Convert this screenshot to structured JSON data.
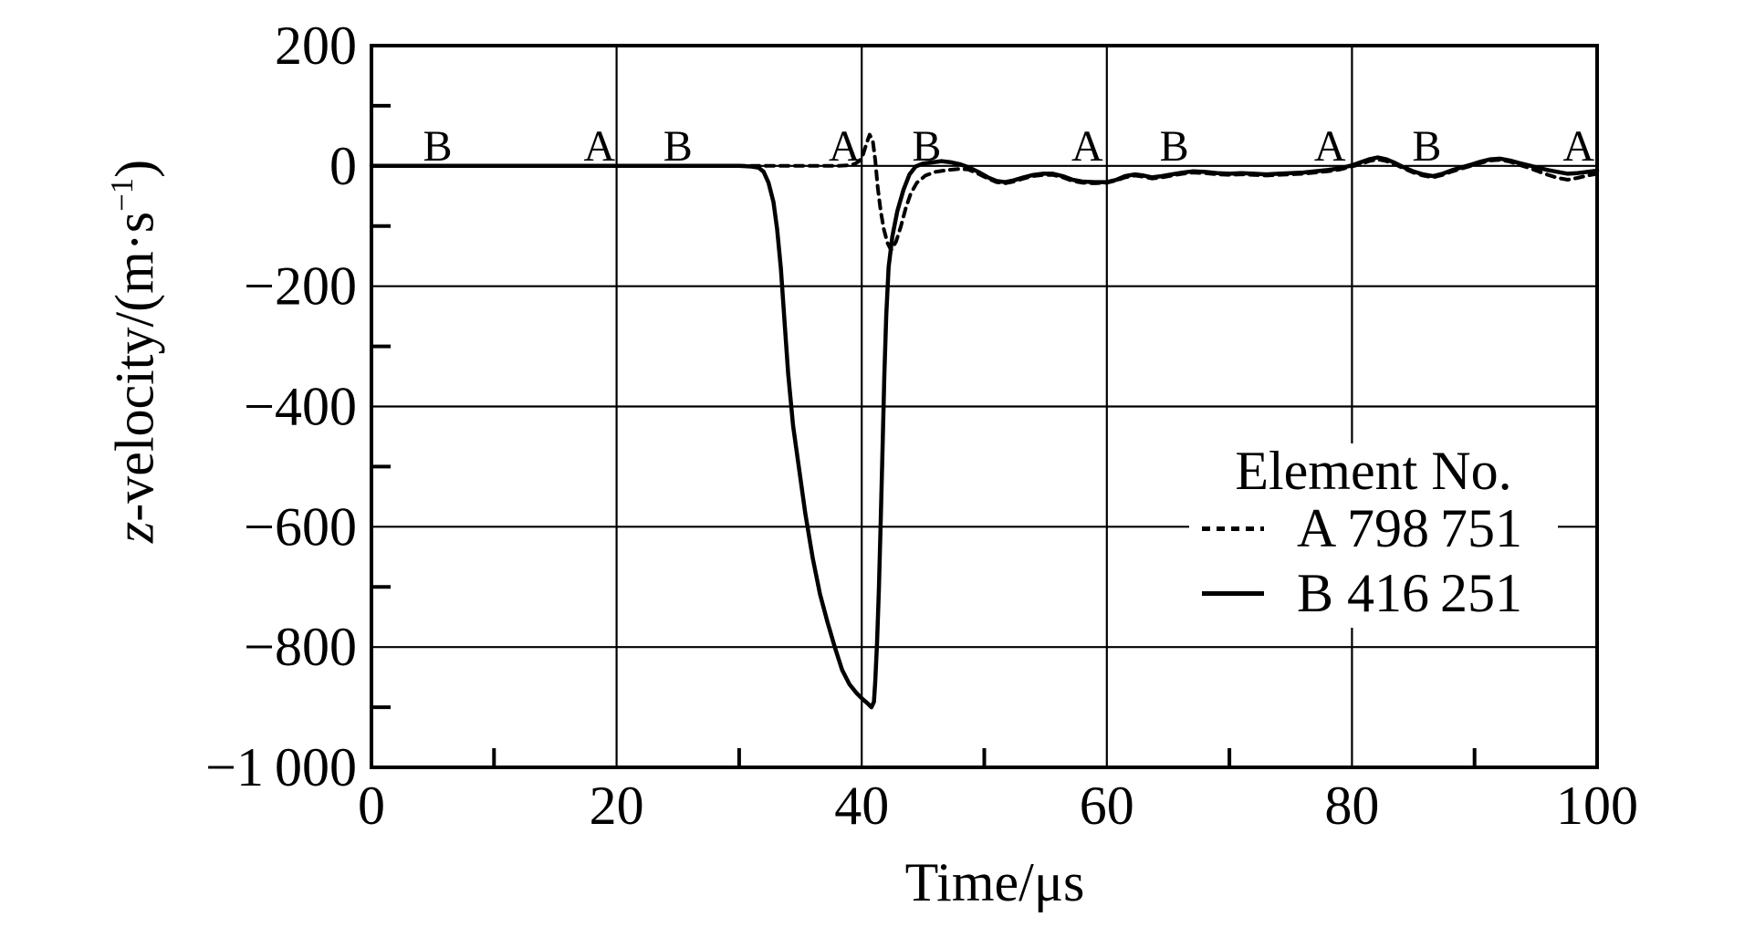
{
  "figure": {
    "background": "#ffffff",
    "ink": "#000000"
  },
  "axes": {
    "y": {
      "label_italic": "z",
      "label_main": "-velocity/(m·s",
      "label_sup": "−1",
      "label_close": ")",
      "ticks": [
        {
          "v": 200,
          "label": "200"
        },
        {
          "v": 0,
          "label": "0"
        },
        {
          "v": -200,
          "label": "−200"
        },
        {
          "v": -400,
          "label": "−400"
        },
        {
          "v": -600,
          "label": "−600"
        },
        {
          "v": -800,
          "label": "−800"
        },
        {
          "v": -1000,
          "label": "−1 000"
        }
      ]
    },
    "x": {
      "label": "Time/μs",
      "ticks": [
        {
          "v": 0,
          "label": "0"
        },
        {
          "v": 20,
          "label": "20"
        },
        {
          "v": 40,
          "label": "40"
        },
        {
          "v": 60,
          "label": "60"
        },
        {
          "v": 80,
          "label": "80"
        },
        {
          "v": 100,
          "label": "100"
        }
      ]
    }
  },
  "legend": {
    "title": "Element No.",
    "items": [
      {
        "series": "A",
        "style": "dashed",
        "label": "A 798 751"
      },
      {
        "series": "B",
        "style": "solid",
        "label": "B 416 251"
      }
    ]
  },
  "chart_data": {
    "type": "line",
    "title": "",
    "xlabel": "Time/μs",
    "ylabel": "z-velocity/(m·s⁻¹)",
    "xlim": [
      0,
      100
    ],
    "ylim": [
      -1000,
      200
    ],
    "x_major_step": 20,
    "y_major_step": 200,
    "x_minor_step": 10,
    "y_minor_step": 100,
    "grid": true,
    "legend_position": "right-middle",
    "curve_labels": [
      {
        "label": "B",
        "t": 5.4
      },
      {
        "label": "A",
        "t": 18.6
      },
      {
        "label": "B",
        "t": 25.0
      },
      {
        "label": "A",
        "t": 38.6
      },
      {
        "label": "B",
        "t": 45.3
      },
      {
        "label": "A",
        "t": 58.4
      },
      {
        "label": "B",
        "t": 65.5
      },
      {
        "label": "A",
        "t": 78.2
      },
      {
        "label": "B",
        "t": 86.1
      },
      {
        "label": "A",
        "t": 98.5
      }
    ],
    "series": [
      {
        "name": "A 798751",
        "element_no": "798751",
        "style": "dashed",
        "points": [
          [
            0,
            0
          ],
          [
            36,
            0
          ],
          [
            38,
            0
          ],
          [
            38.8,
            1
          ],
          [
            39.4,
            3
          ],
          [
            39.8,
            8
          ],
          [
            40.1,
            18
          ],
          [
            40.4,
            38
          ],
          [
            40.65,
            52
          ],
          [
            40.9,
            42
          ],
          [
            41.1,
            10
          ],
          [
            41.3,
            -35
          ],
          [
            41.55,
            -75
          ],
          [
            41.8,
            -105
          ],
          [
            42.1,
            -128
          ],
          [
            42.4,
            -140
          ],
          [
            42.8,
            -126
          ],
          [
            43.2,
            -100
          ],
          [
            43.6,
            -70
          ],
          [
            44,
            -46
          ],
          [
            44.5,
            -28
          ],
          [
            45.2,
            -16
          ],
          [
            46,
            -10
          ],
          [
            47,
            -7
          ],
          [
            48,
            -5
          ],
          [
            48.7,
            -6
          ],
          [
            49.5,
            -13
          ],
          [
            50.3,
            -21
          ],
          [
            51,
            -27
          ],
          [
            51.7,
            -29
          ],
          [
            52.4,
            -26
          ],
          [
            53.2,
            -21
          ],
          [
            54,
            -17
          ],
          [
            54.8,
            -15
          ],
          [
            55.6,
            -15
          ],
          [
            56.4,
            -19
          ],
          [
            57.2,
            -25
          ],
          [
            58,
            -28
          ],
          [
            59,
            -29
          ],
          [
            60,
            -28
          ],
          [
            60.8,
            -24
          ],
          [
            61.5,
            -19
          ],
          [
            62.3,
            -16
          ],
          [
            63,
            -18
          ],
          [
            63.7,
            -21
          ],
          [
            64.5,
            -19
          ],
          [
            65.3,
            -16
          ],
          [
            66.2,
            -13
          ],
          [
            67,
            -11
          ],
          [
            68,
            -12
          ],
          [
            69,
            -14
          ],
          [
            70,
            -15
          ],
          [
            71,
            -14
          ],
          [
            72,
            -15
          ],
          [
            73,
            -16
          ],
          [
            74,
            -15
          ],
          [
            75,
            -14
          ],
          [
            76,
            -13
          ],
          [
            77,
            -11
          ],
          [
            78,
            -9
          ],
          [
            79,
            -6
          ],
          [
            80,
            -1
          ],
          [
            80.7,
            3
          ],
          [
            81.4,
            8
          ],
          [
            82.1,
            11
          ],
          [
            82.8,
            8
          ],
          [
            83.5,
            3
          ],
          [
            84.2,
            -4
          ],
          [
            85,
            -11
          ],
          [
            85.8,
            -16
          ],
          [
            86.6,
            -19
          ],
          [
            87.4,
            -15
          ],
          [
            88.2,
            -9
          ],
          [
            89,
            -4
          ],
          [
            89.7,
            0
          ],
          [
            90.5,
            5
          ],
          [
            91.3,
            9
          ],
          [
            92.1,
            10
          ],
          [
            92.9,
            7
          ],
          [
            93.6,
            2
          ],
          [
            94.4,
            -3
          ],
          [
            95.2,
            -9
          ],
          [
            96,
            -15
          ],
          [
            96.8,
            -20
          ],
          [
            97.6,
            -23
          ],
          [
            98.4,
            -20
          ],
          [
            99.2,
            -16
          ],
          [
            100,
            -13
          ]
        ]
      },
      {
        "name": "B 416251",
        "element_no": "416251",
        "style": "solid",
        "points": [
          [
            0,
            0
          ],
          [
            28,
            0
          ],
          [
            30,
            0
          ],
          [
            31,
            -1
          ],
          [
            31.6,
            -3
          ],
          [
            32,
            -10
          ],
          [
            32.4,
            -28
          ],
          [
            32.8,
            -60
          ],
          [
            33.1,
            -105
          ],
          [
            33.4,
            -170
          ],
          [
            33.7,
            -258
          ],
          [
            34,
            -345
          ],
          [
            34.4,
            -432
          ],
          [
            34.9,
            -505
          ],
          [
            35.4,
            -578
          ],
          [
            36,
            -652
          ],
          [
            36.6,
            -712
          ],
          [
            37.2,
            -758
          ],
          [
            37.8,
            -800
          ],
          [
            38.4,
            -838
          ],
          [
            39,
            -862
          ],
          [
            39.6,
            -877
          ],
          [
            40.1,
            -887
          ],
          [
            40.5,
            -894
          ],
          [
            40.8,
            -900
          ],
          [
            41,
            -891
          ],
          [
            41.1,
            -858
          ],
          [
            41.25,
            -793
          ],
          [
            41.4,
            -705
          ],
          [
            41.55,
            -592
          ],
          [
            41.7,
            -472
          ],
          [
            41.85,
            -348
          ],
          [
            42,
            -248
          ],
          [
            42.2,
            -168
          ],
          [
            42.5,
            -117
          ],
          [
            42.9,
            -76
          ],
          [
            43.4,
            -40
          ],
          [
            43.9,
            -14
          ],
          [
            44.4,
            -1
          ],
          [
            45,
            4
          ],
          [
            45.8,
            6
          ],
          [
            46.5,
            8
          ],
          [
            47.3,
            6
          ],
          [
            48,
            3
          ],
          [
            48.7,
            -2
          ],
          [
            49.5,
            -10
          ],
          [
            50.3,
            -19
          ],
          [
            51,
            -25
          ],
          [
            51.7,
            -27
          ],
          [
            52.4,
            -24
          ],
          [
            53.2,
            -19
          ],
          [
            54,
            -15
          ],
          [
            54.8,
            -13
          ],
          [
            55.6,
            -13
          ],
          [
            56.4,
            -17
          ],
          [
            57.2,
            -23
          ],
          [
            58,
            -26
          ],
          [
            59,
            -27
          ],
          [
            60,
            -27
          ],
          [
            60.8,
            -23
          ],
          [
            61.5,
            -17
          ],
          [
            62.3,
            -14
          ],
          [
            63,
            -16
          ],
          [
            63.7,
            -19
          ],
          [
            64.5,
            -17
          ],
          [
            65.3,
            -14
          ],
          [
            66.2,
            -11
          ],
          [
            67,
            -9
          ],
          [
            68,
            -10
          ],
          [
            69,
            -12
          ],
          [
            70,
            -13
          ],
          [
            71,
            -12
          ],
          [
            72,
            -13
          ],
          [
            73,
            -14
          ],
          [
            74,
            -13
          ],
          [
            75,
            -12
          ],
          [
            76,
            -11
          ],
          [
            77,
            -9
          ],
          [
            78,
            -7
          ],
          [
            79,
            -4
          ],
          [
            80,
            1
          ],
          [
            80.7,
            6
          ],
          [
            81.4,
            11
          ],
          [
            82.1,
            14
          ],
          [
            82.8,
            11
          ],
          [
            83.5,
            5
          ],
          [
            84.2,
            -2
          ],
          [
            85,
            -9
          ],
          [
            85.8,
            -14
          ],
          [
            86.6,
            -17
          ],
          [
            87.4,
            -13
          ],
          [
            88.2,
            -7
          ],
          [
            89,
            -2
          ],
          [
            89.7,
            2
          ],
          [
            90.5,
            7
          ],
          [
            91.3,
            11
          ],
          [
            92.1,
            12
          ],
          [
            92.9,
            9
          ],
          [
            93.6,
            5
          ],
          [
            94.4,
            1
          ],
          [
            95.2,
            -3
          ],
          [
            96,
            -7
          ],
          [
            96.8,
            -10
          ],
          [
            97.6,
            -13
          ],
          [
            98.4,
            -12
          ],
          [
            99.2,
            -10
          ],
          [
            100,
            -8
          ]
        ]
      }
    ]
  }
}
